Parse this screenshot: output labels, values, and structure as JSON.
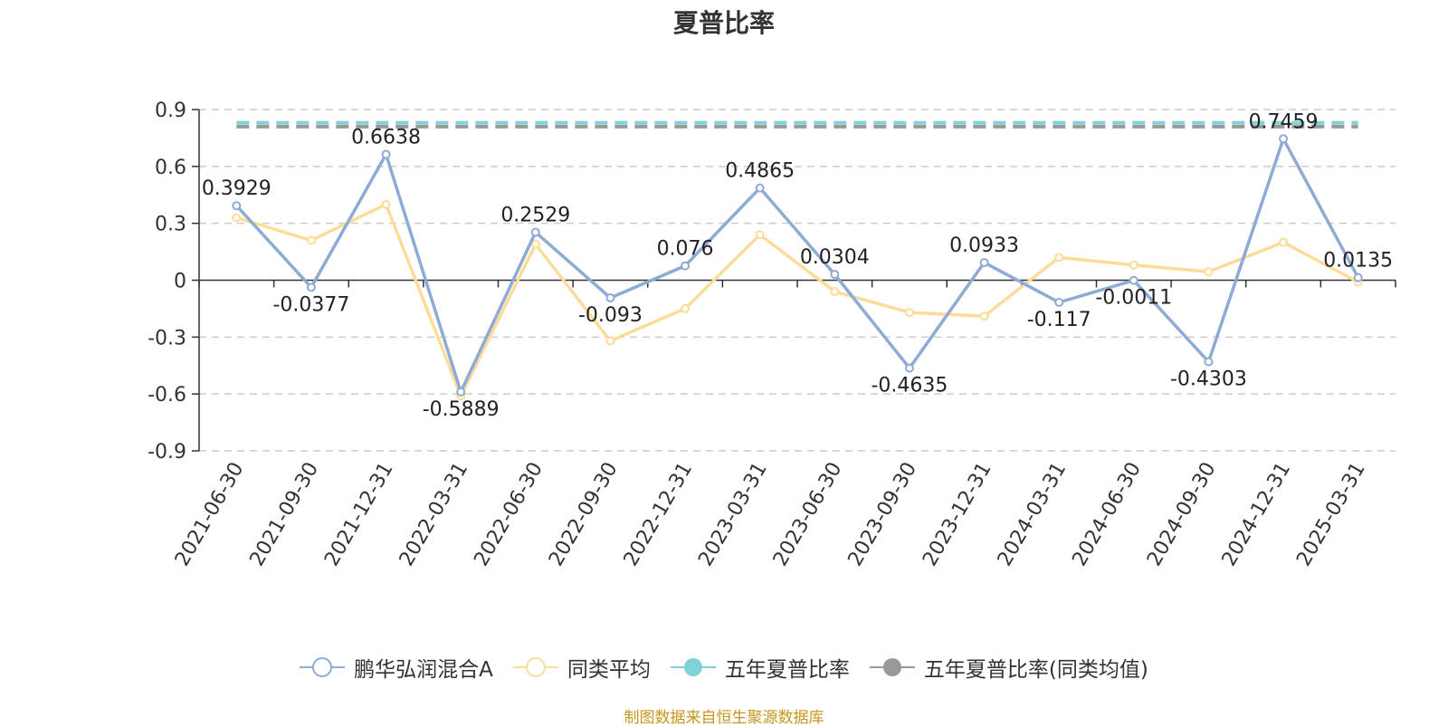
{
  "source_note": "制图数据来自恒生聚源数据库",
  "chart_data": {
    "type": "line",
    "title": "夏普比率",
    "xlabel": "",
    "ylabel": "",
    "categories": [
      "2021-06-30",
      "2021-09-30",
      "2021-12-31",
      "2022-03-31",
      "2022-06-30",
      "2022-09-30",
      "2022-12-31",
      "2023-03-31",
      "2023-06-30",
      "2023-09-30",
      "2023-12-31",
      "2024-03-31",
      "2024-06-30",
      "2024-09-30",
      "2024-12-31",
      "2025-03-31"
    ],
    "ylim": [
      -0.9,
      0.9
    ],
    "yticks": [
      "0.9",
      "0.6",
      "0.3",
      "0",
      "-0.3",
      "-0.6",
      "-0.9"
    ],
    "ytick_values": [
      0.9,
      0.6,
      0.3,
      0,
      -0.3,
      -0.6,
      -0.9
    ],
    "grid": true,
    "legend_position": "bottom",
    "series": [
      {
        "name": "鹏华弘润混合A",
        "color": "#8eabd6",
        "values": [
          0.3929,
          -0.0377,
          0.6638,
          -0.5889,
          0.2529,
          -0.093,
          0.076,
          0.4865,
          0.0304,
          -0.4635,
          0.0933,
          -0.117,
          -0.0011,
          -0.4303,
          0.7459,
          0.0135
        ],
        "labels": [
          "0.3929",
          "-0.0377",
          "0.6638",
          "-0.5889",
          "0.2529",
          "-0.093",
          "0.076",
          "0.4865",
          "0.0304",
          "-0.4635",
          "0.0933",
          "-0.117",
          "-0.0011",
          "-0.4303",
          "0.7459",
          "0.0135"
        ]
      },
      {
        "name": "同类平均",
        "color": "#fddc9a",
        "values": [
          0.33,
          0.21,
          0.4,
          -0.61,
          0.19,
          -0.32,
          -0.15,
          0.24,
          -0.06,
          -0.17,
          -0.19,
          0.12,
          0.08,
          0.045,
          0.2,
          -0.01
        ]
      },
      {
        "name": "五年夏普比率",
        "color": "#7fd3d6",
        "constant": 0.83
      },
      {
        "name": "五年夏普比率(同类均值)",
        "color": "#999999",
        "constant": 0.81
      }
    ]
  }
}
